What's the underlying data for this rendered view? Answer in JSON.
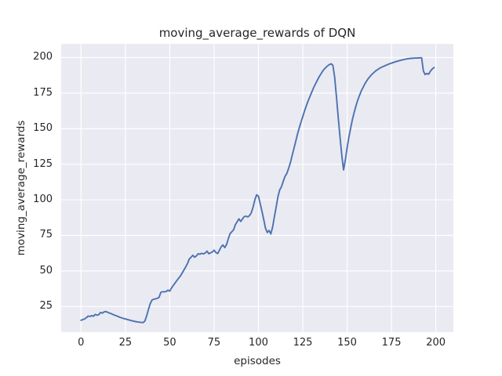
{
  "chart_data": {
    "type": "line",
    "title": "moving_average_rewards of DQN",
    "xlabel": "episodes",
    "ylabel": "moving_average_rewards",
    "xticks": [
      0,
      25,
      50,
      75,
      100,
      125,
      150,
      175,
      200
    ],
    "yticks": [
      25,
      50,
      75,
      100,
      125,
      150,
      175,
      200
    ],
    "xlim": [
      -11.2,
      209.9
    ],
    "ylim": [
      7.0,
      209.6
    ],
    "grid": true,
    "legend": "none",
    "line_color": "#4c72b0",
    "background_color": "#eaeaf2",
    "grid_color": "#ffffff",
    "text_color": "#262626",
    "series_name": "moving_average_rewards",
    "x": [
      0,
      1,
      2,
      3,
      4,
      5,
      6,
      7,
      8,
      9,
      10,
      11,
      12,
      13,
      14,
      15,
      16,
      17,
      18,
      19,
      20,
      22,
      24,
      26,
      28,
      30,
      32,
      34,
      35,
      36,
      37,
      38,
      39,
      40,
      41,
      42,
      43,
      44,
      45,
      46,
      47,
      48,
      49,
      50,
      51,
      52,
      53,
      54,
      55,
      56,
      57,
      58,
      59,
      60,
      61,
      62,
      63,
      64,
      65,
      66,
      67,
      68,
      69,
      70,
      71,
      72,
      73,
      74,
      75,
      76,
      77,
      78,
      79,
      80,
      81,
      82,
      83,
      84,
      85,
      86,
      87,
      88,
      89,
      90,
      91,
      92,
      93,
      94,
      95,
      96,
      97,
      98,
      99,
      100,
      101,
      102,
      103,
      104,
      105,
      106,
      107,
      108,
      109,
      110,
      111,
      112,
      113,
      114,
      115,
      116,
      117,
      118,
      119,
      120,
      121,
      122,
      123,
      124,
      125,
      126,
      127,
      128,
      129,
      130,
      131,
      132,
      133,
      134,
      135,
      136,
      137,
      138,
      139,
      140,
      141,
      142,
      143,
      144,
      145,
      146,
      147,
      148,
      149,
      150,
      151,
      152,
      153,
      154,
      155,
      156,
      157,
      158,
      159,
      160,
      161,
      162,
      163,
      164,
      165,
      166,
      167,
      168,
      169,
      170,
      172,
      174,
      176,
      178,
      180,
      182,
      184,
      186,
      188,
      190,
      191,
      192,
      193,
      194,
      195,
      196,
      197,
      198,
      199
    ],
    "y": [
      15.3,
      15.8,
      16.3,
      17.2,
      18.3,
      18.0,
      18.6,
      18.2,
      19.5,
      18.9,
      19.3,
      20.8,
      20.4,
      21.2,
      21.5,
      21.0,
      20.4,
      20.0,
      19.4,
      18.9,
      18.4,
      17.4,
      16.6,
      15.9,
      15.2,
      14.6,
      14.1,
      13.8,
      13.7,
      14.8,
      18.5,
      23.0,
      27.0,
      29.5,
      30.2,
      30.4,
      30.8,
      31.5,
      35.0,
      35.4,
      35.3,
      35.6,
      36.5,
      35.8,
      38.0,
      39.8,
      41.5,
      43.2,
      44.9,
      46.5,
      48.5,
      50.7,
      52.9,
      55.1,
      58.4,
      59.5,
      61.0,
      59.7,
      60.5,
      62.1,
      61.8,
      62.4,
      62.0,
      62.6,
      63.9,
      62.1,
      62.7,
      63.3,
      64.6,
      63.0,
      62.2,
      64.5,
      67.0,
      68.3,
      66.4,
      68.5,
      72.5,
      76.2,
      77.5,
      78.9,
      82.6,
      84.5,
      86.6,
      84.8,
      86.5,
      88.2,
      88.5,
      88.0,
      89.0,
      90.9,
      95.0,
      100.0,
      103.5,
      102.5,
      97.4,
      91.9,
      86.0,
      80.0,
      77.0,
      78.5,
      76.0,
      81.0,
      88.0,
      95.0,
      102.0,
      107.0,
      109.3,
      113.0,
      116.5,
      118.5,
      122.0,
      126.0,
      131.0,
      136.0,
      141.0,
      146.0,
      150.5,
      154.5,
      158.5,
      162.5,
      166.0,
      169.5,
      172.5,
      175.5,
      178.5,
      181.0,
      183.5,
      186.0,
      188.0,
      190.0,
      191.7,
      193.0,
      194.2,
      195.0,
      195.6,
      194.5,
      186.0,
      172.0,
      158.0,
      144.0,
      131.0,
      121.0,
      128.0,
      136.5,
      144.0,
      150.5,
      156.5,
      161.5,
      166.0,
      170.0,
      173.5,
      176.5,
      179.0,
      181.5,
      183.5,
      185.3,
      186.8,
      188.2,
      189.4,
      190.5,
      191.4,
      192.2,
      192.9,
      193.5,
      194.6,
      195.6,
      196.5,
      197.3,
      198.0,
      198.6,
      199.1,
      199.4,
      199.6,
      199.7,
      199.8,
      199.8,
      190.5,
      188.0,
      188.8,
      188.3,
      190.5,
      192.0,
      193.0
    ]
  }
}
